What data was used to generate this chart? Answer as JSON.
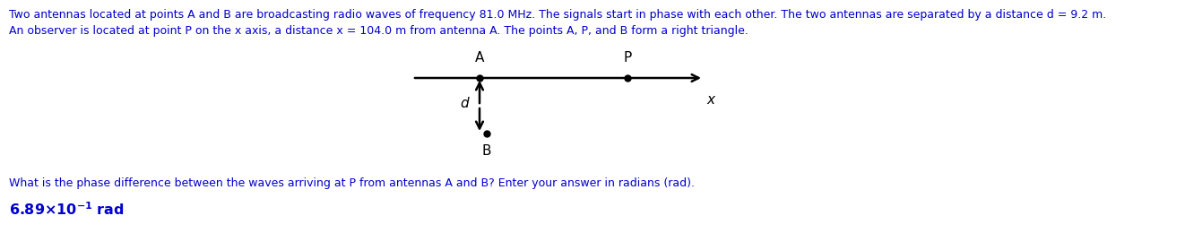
{
  "text_line1": "Two antennas located at points A and B are broadcasting radio waves of frequency 81.0 MHz. The signals start in phase with each other. The two antennas are separated by a distance d = 9.2 m.",
  "text_line2": "An observer is located at point P on the x axis, a distance x = 104.0 m from antenna A. The points A, P, and B form a right triangle.",
  "question_text": "What is the phase difference between the waves arriving at P from antennas A and B? Enter your answer in radians (rad).",
  "text_color": "#0000cc",
  "diagram_color": "#000000",
  "label_A": "A",
  "label_B": "B",
  "label_P": "P",
  "label_x": "x",
  "label_d": "d",
  "fig_width": 13.22,
  "fig_height": 2.6,
  "dpi": 100,
  "font_size_body": 9.0,
  "font_size_diagram": 11,
  "font_size_answer_bold": 11.5
}
